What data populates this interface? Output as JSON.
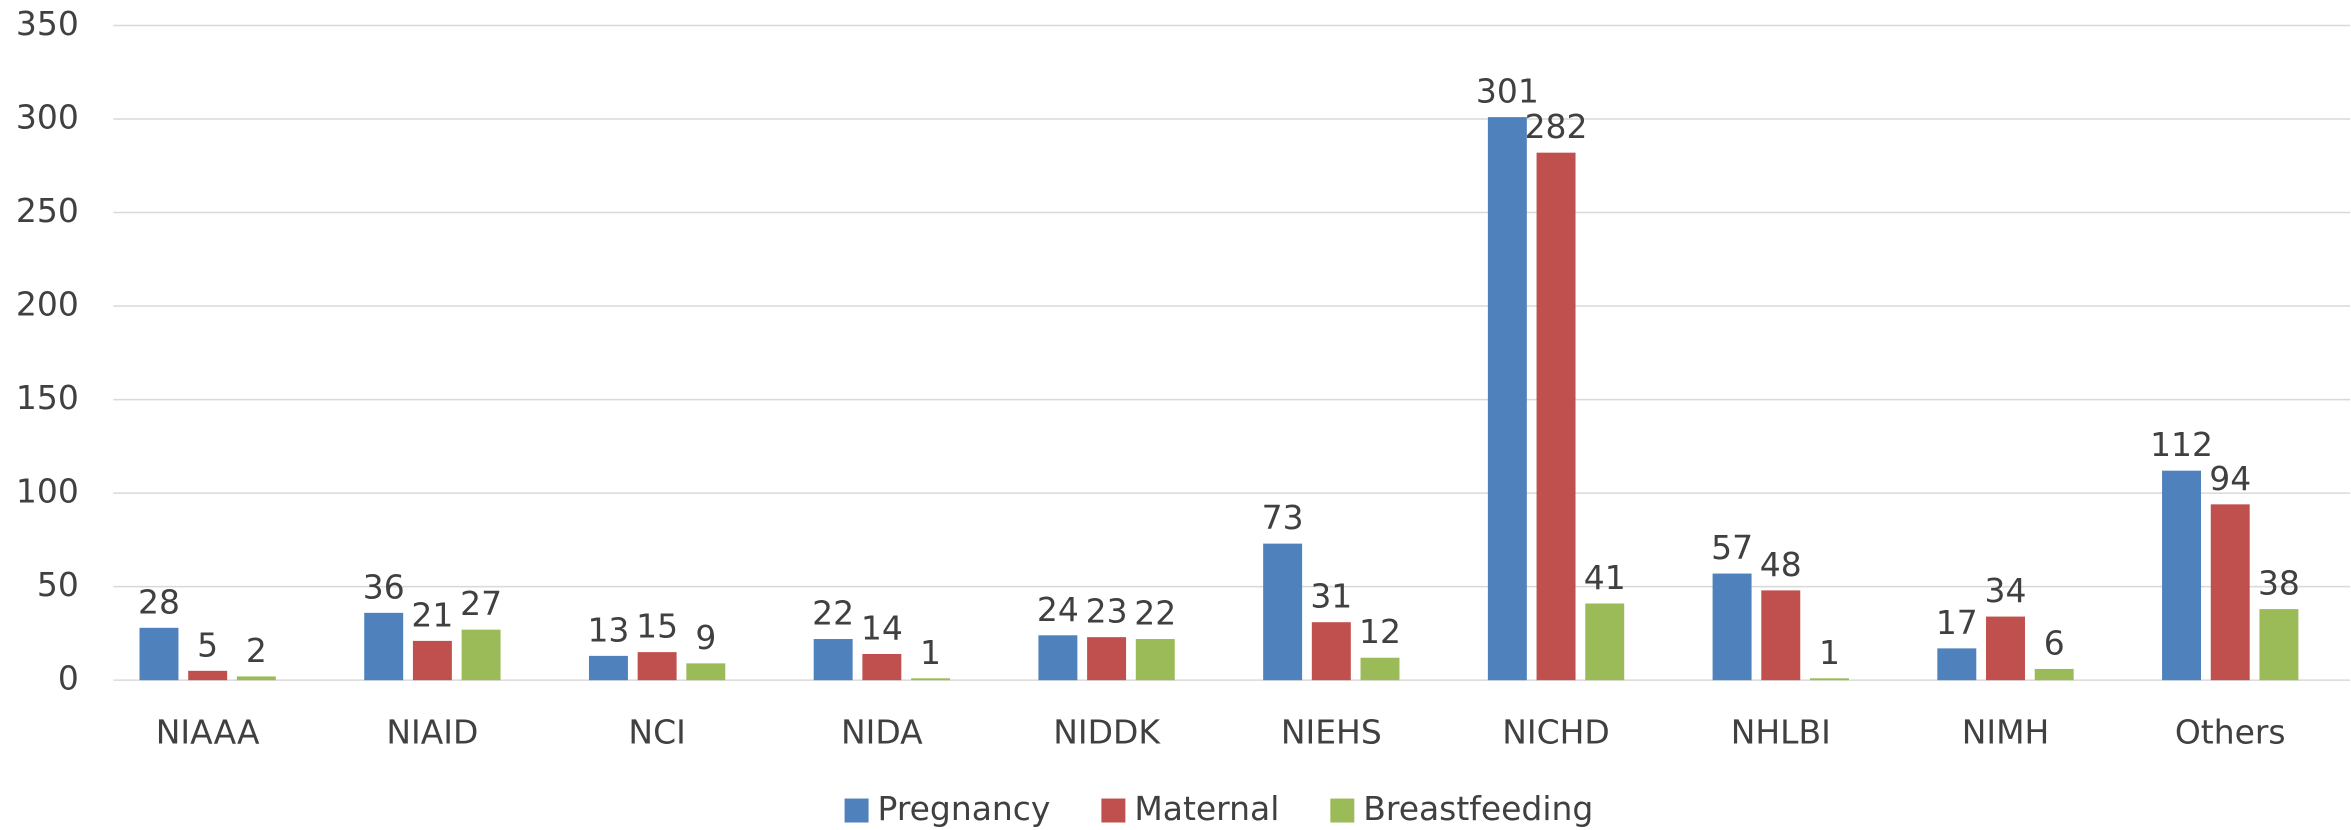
{
  "chart_data": {
    "type": "bar",
    "categories": [
      "NIAAA",
      "NIAID",
      "NCI",
      "NIDA",
      "NIDDK",
      "NIEHS",
      "NICHD",
      "NHLBI",
      "NIMH",
      "Others"
    ],
    "series": [
      {
        "name": "Pregnancy",
        "color": "#4f81bd",
        "values": [
          28,
          36,
          13,
          22,
          24,
          73,
          301,
          57,
          17,
          112
        ]
      },
      {
        "name": "Maternal",
        "color": "#c0504d",
        "values": [
          5,
          21,
          15,
          14,
          23,
          31,
          282,
          48,
          34,
          94
        ]
      },
      {
        "name": "Breastfeeding",
        "color": "#9bbb59",
        "values": [
          2,
          27,
          9,
          1,
          22,
          12,
          41,
          1,
          6,
          38
        ]
      }
    ],
    "ylim": [
      0,
      350
    ],
    "yticks": [
      0,
      50,
      100,
      150,
      200,
      250,
      300,
      350
    ],
    "grid": true,
    "legend": "bottom"
  }
}
